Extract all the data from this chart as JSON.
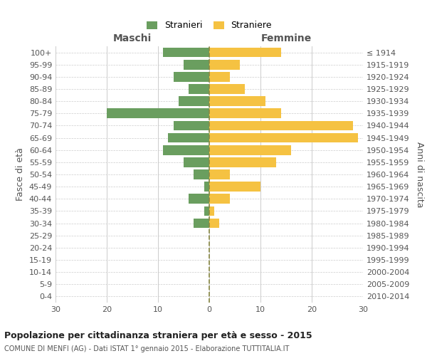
{
  "age_groups": [
    "0-4",
    "5-9",
    "10-14",
    "15-19",
    "20-24",
    "25-29",
    "30-34",
    "35-39",
    "40-44",
    "45-49",
    "50-54",
    "55-59",
    "60-64",
    "65-69",
    "70-74",
    "75-79",
    "80-84",
    "85-89",
    "90-94",
    "95-99",
    "100+"
  ],
  "birth_years": [
    "2010-2014",
    "2005-2009",
    "2000-2004",
    "1995-1999",
    "1990-1994",
    "1985-1989",
    "1980-1984",
    "1975-1979",
    "1970-1974",
    "1965-1969",
    "1960-1964",
    "1955-1959",
    "1950-1954",
    "1945-1949",
    "1940-1944",
    "1935-1939",
    "1930-1934",
    "1925-1929",
    "1920-1924",
    "1915-1919",
    "≤ 1914"
  ],
  "males": [
    9,
    5,
    7,
    4,
    6,
    20,
    7,
    8,
    9,
    5,
    3,
    1,
    4,
    1,
    3,
    0,
    0,
    0,
    0,
    0,
    0
  ],
  "females": [
    14,
    6,
    4,
    7,
    11,
    14,
    28,
    29,
    16,
    13,
    4,
    10,
    4,
    1,
    2,
    0,
    0,
    0,
    0,
    0,
    0
  ],
  "male_color": "#6a9e5f",
  "female_color": "#f5c242",
  "title": "Popolazione per cittadinanza straniera per età e sesso - 2015",
  "subtitle": "COMUNE DI MENFI (AG) - Dati ISTAT 1° gennaio 2015 - Elaborazione TUTTITALIA.IT",
  "xlabel_left": "Maschi",
  "xlabel_right": "Femmine",
  "ylabel_left": "Fasce di età",
  "ylabel_right": "Anni di nascita",
  "legend_male": "Stranieri",
  "legend_female": "Straniere",
  "xlim": 30,
  "background_color": "#ffffff",
  "grid_color": "#cccccc",
  "bar_height": 0.8,
  "dashed_line_color": "#888844",
  "text_color": "#555555",
  "title_color": "#222222"
}
